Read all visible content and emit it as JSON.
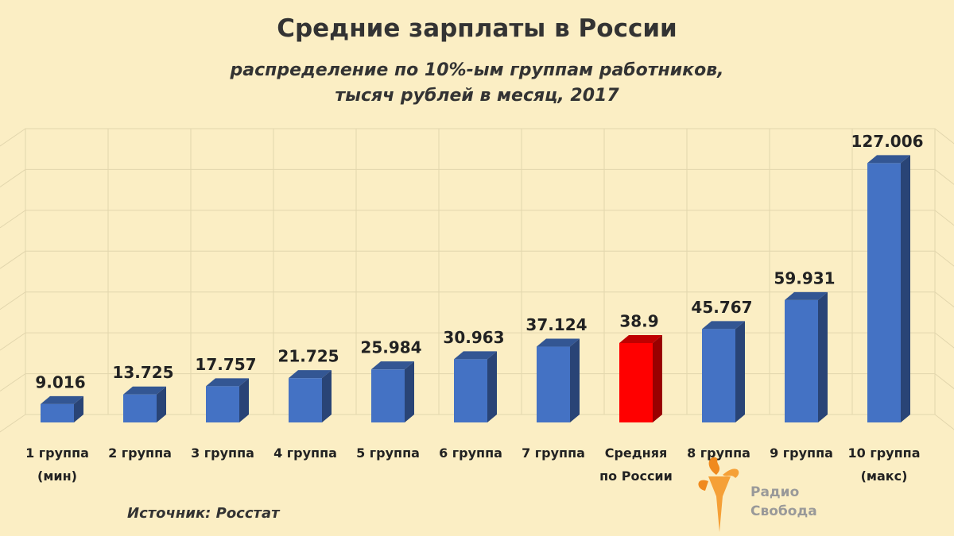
{
  "chart_data": {
    "type": "bar3d",
    "title": "Средние зарплаты в России",
    "subtitle": [
      "распределение по 10%-ым группам работников,",
      "тысяч рублей в месяц, 2017"
    ],
    "categories": [
      "1 группа (мин)",
      "2 группа",
      "3 группа",
      "4 группа",
      "5 группа",
      "6 группа",
      "7 группа",
      "Средняя по России",
      "8 группа",
      "9 группа",
      "10 группа (макс)"
    ],
    "values": [
      9.016,
      13.725,
      17.757,
      21.725,
      25.984,
      30.963,
      37.124,
      38.9,
      45.767,
      59.931,
      127.006
    ],
    "colors": [
      "#4472c4",
      "#4472c4",
      "#4472c4",
      "#4472c4",
      "#4472c4",
      "#4472c4",
      "#4472c4",
      "#ff0000",
      "#4472c4",
      "#4472c4",
      "#4472c4"
    ],
    "ylim": [
      0,
      140
    ],
    "yticks": [
      0,
      20,
      40,
      60,
      80,
      100,
      120,
      140
    ],
    "grid": true,
    "source": "Источник: Росстат",
    "logo": [
      "Радио",
      "Свобода"
    ]
  }
}
